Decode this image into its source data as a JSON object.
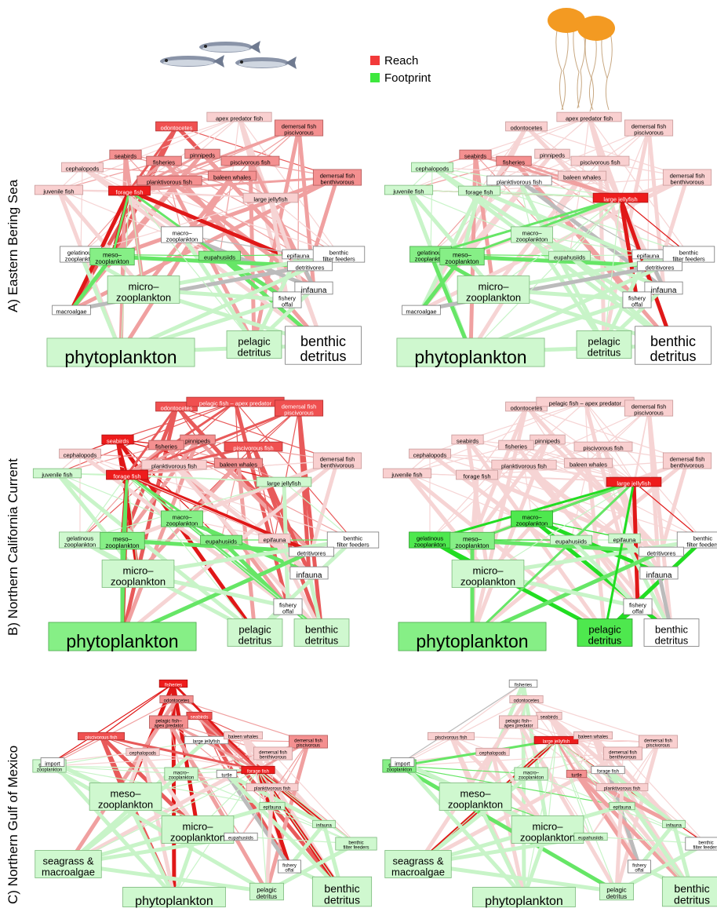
{
  "legend": {
    "reach_label": "Reach",
    "footprint_label": "Footprint",
    "reach_color": "#f23a3a",
    "footprint_color": "#3ee83e"
  },
  "icons": [
    "fish-school-icon",
    "jellyfish-icon"
  ],
  "panels": [
    {
      "row_label": "A) Eastern Bering Sea",
      "focal_left": "forage fish",
      "focal_right": "large jellyfish",
      "nodes": [
        {
          "id": "odo",
          "label": [
            "odontocetes"
          ],
          "L": "r3",
          "R": "r1"
        },
        {
          "id": "apex",
          "label": [
            "apex predator fish"
          ],
          "L": "r1",
          "R": "r1"
        },
        {
          "id": "dfp",
          "label": [
            "demersal fish",
            "piscivorous"
          ],
          "L": "r2",
          "R": "r1"
        },
        {
          "id": "seab",
          "label": [
            "seabirds"
          ],
          "L": "r2",
          "R": "r2"
        },
        {
          "id": "pinn",
          "label": [
            "pinnipeds"
          ],
          "L": "r2",
          "R": "r1"
        },
        {
          "id": "fish",
          "label": [
            "fisheries"
          ],
          "L": "r2",
          "R": "r2"
        },
        {
          "id": "pisc",
          "label": [
            "piscivorous fish"
          ],
          "L": "r2",
          "R": "r1"
        },
        {
          "id": "baleen",
          "label": [
            "baleen whales"
          ],
          "L": "r2",
          "R": "r1"
        },
        {
          "id": "dfb",
          "label": [
            "demersal fish",
            "benthivorous"
          ],
          "L": "r2",
          "R": "r1"
        },
        {
          "id": "ceph",
          "label": [
            "cephalopods"
          ],
          "L": "r1",
          "R": "g1"
        },
        {
          "id": "plank",
          "label": [
            "planktivorous fish"
          ],
          "L": "r2",
          "R": "w"
        },
        {
          "id": "juv",
          "label": [
            "juvenile fish"
          ],
          "L": "r1",
          "R": "g1"
        },
        {
          "id": "forage",
          "label": [
            "forage fish"
          ],
          "L": "r4",
          "R": "g1"
        },
        {
          "id": "ljelly",
          "label": [
            "large jellyfish"
          ],
          "L": "r1",
          "R": "r4"
        },
        {
          "id": "macro",
          "label": [
            "macro–",
            "zooplankton"
          ],
          "L": "w",
          "R": "g1"
        },
        {
          "id": "gel",
          "label": [
            "gelatinous",
            "zooplankton"
          ],
          "L": "w",
          "R": "g2"
        },
        {
          "id": "meso",
          "label": [
            "meso–",
            "zooplankton"
          ],
          "L": "g2",
          "R": "g2"
        },
        {
          "id": "euph",
          "label": [
            "eupahusiids"
          ],
          "L": "g2",
          "R": "g1"
        },
        {
          "id": "epif",
          "label": [
            "epifauna"
          ],
          "L": "w",
          "R": "w"
        },
        {
          "id": "bff",
          "label": [
            "benthic",
            "filter feeders"
          ],
          "L": "w",
          "R": "w"
        },
        {
          "id": "detv",
          "label": [
            "detritivores"
          ],
          "L": "w",
          "R": "w"
        },
        {
          "id": "micro",
          "label": [
            "micro–",
            "zooplankton"
          ],
          "L": "g1",
          "R": "g1"
        },
        {
          "id": "infa",
          "label": [
            "infauna"
          ],
          "L": "w",
          "R": "w"
        },
        {
          "id": "offal",
          "label": [
            "fishery",
            "offal"
          ],
          "L": "w",
          "R": "w"
        },
        {
          "id": "malg",
          "label": [
            "macroalgae"
          ],
          "L": "w",
          "R": "w"
        },
        {
          "id": "phyto",
          "label": [
            "phytoplankton"
          ],
          "L": "g1",
          "R": "g1"
        },
        {
          "id": "pdet",
          "label": [
            "pelagic",
            "detritus"
          ],
          "L": "g1",
          "R": "g1"
        },
        {
          "id": "bdet",
          "label": [
            "benthic",
            "detritus"
          ],
          "L": "w",
          "R": "w"
        }
      ]
    },
    {
      "row_label": "B) Northern California Current",
      "focal_left": "forage fish",
      "focal_right": "large jellyfish",
      "nodes": [
        {
          "id": "odo",
          "label": [
            "odontocetes"
          ],
          "L": "r3",
          "R": "r1"
        },
        {
          "id": "pfap",
          "label": [
            "pelagic fish – apex predator"
          ],
          "L": "r3",
          "R": "r1"
        },
        {
          "id": "dfp",
          "label": [
            "demersal fish",
            "piscivorous"
          ],
          "L": "r3",
          "R": "r1"
        },
        {
          "id": "seab",
          "label": [
            "seabirds"
          ],
          "L": "r4",
          "R": "r1"
        },
        {
          "id": "pinn",
          "label": [
            "pinnipeds"
          ],
          "L": "r2",
          "R": "r1"
        },
        {
          "id": "fish",
          "label": [
            "fisheries"
          ],
          "L": "r2",
          "R": "r1"
        },
        {
          "id": "pisc",
          "label": [
            "piscivorous fish"
          ],
          "L": "r3",
          "R": "r1"
        },
        {
          "id": "baleen",
          "label": [
            "baleen whales"
          ],
          "L": "r2",
          "R": "r1"
        },
        {
          "id": "dfb",
          "label": [
            "demersal fish",
            "benthivorous"
          ],
          "L": "r1",
          "R": "r1"
        },
        {
          "id": "ceph",
          "label": [
            "cephalopods"
          ],
          "L": "r1",
          "R": "r1"
        },
        {
          "id": "plank",
          "label": [
            "planktivorous fish"
          ],
          "L": "r1",
          "R": "r1"
        },
        {
          "id": "juv",
          "label": [
            "juvenile fish"
          ],
          "L": "g1",
          "R": "r1"
        },
        {
          "id": "forage",
          "label": [
            "forage fish"
          ],
          "L": "r4",
          "R": "r1"
        },
        {
          "id": "ljelly",
          "label": [
            "large jellyfish"
          ],
          "L": "g1",
          "R": "r4"
        },
        {
          "id": "macro",
          "label": [
            "macro–",
            "zooplankton"
          ],
          "L": "g2",
          "R": "g3"
        },
        {
          "id": "gel",
          "label": [
            "gelatinous",
            "zooplankton"
          ],
          "L": "g1",
          "R": "g3"
        },
        {
          "id": "meso",
          "label": [
            "meso–",
            "zooplankton"
          ],
          "L": "g2",
          "R": "g2"
        },
        {
          "id": "euph",
          "label": [
            "eupahusiids"
          ],
          "L": "g2",
          "R": "g1"
        },
        {
          "id": "epif",
          "label": [
            "epifauna"
          ],
          "L": "r1",
          "R": "g1"
        },
        {
          "id": "bff",
          "label": [
            "benthic",
            "filter feeders"
          ],
          "L": "w",
          "R": "w"
        },
        {
          "id": "detv",
          "label": [
            "detritivores"
          ],
          "L": "w",
          "R": "w"
        },
        {
          "id": "micro",
          "label": [
            "micro–",
            "zooplankton"
          ],
          "L": "g1",
          "R": "g1"
        },
        {
          "id": "infa",
          "label": [
            "infauna"
          ],
          "L": "w",
          "R": "w"
        },
        {
          "id": "offal",
          "label": [
            "fishery",
            "offal"
          ],
          "L": "w",
          "R": "w"
        },
        {
          "id": "phyto",
          "label": [
            "phytoplankton"
          ],
          "L": "g2",
          "R": "g2"
        },
        {
          "id": "pdet",
          "label": [
            "pelagic",
            "detritus"
          ],
          "L": "g1",
          "R": "g3"
        },
        {
          "id": "bdet",
          "label": [
            "benthic",
            "detritus"
          ],
          "L": "g1",
          "R": "w"
        }
      ]
    },
    {
      "row_label": "C) Northern Gulf of Mexico",
      "focal_left": "forage fish",
      "focal_right": "large jellyfish",
      "nodes": [
        {
          "id": "fish",
          "label": [
            "fisheries"
          ],
          "L": "r4",
          "R": "w"
        },
        {
          "id": "odo",
          "label": [
            "odontocetes"
          ],
          "L": "r2",
          "R": "r1"
        },
        {
          "id": "seab",
          "label": [
            "seabirds"
          ],
          "L": "r3",
          "R": "r1"
        },
        {
          "id": "pfap",
          "label": [
            "pelagic fish–",
            "apex predator"
          ],
          "L": "r2",
          "R": "r1"
        },
        {
          "id": "pisc",
          "label": [
            "piscivorous fish"
          ],
          "L": "r3",
          "R": "r1"
        },
        {
          "id": "ljelly",
          "label": [
            "large jellyfish"
          ],
          "L": "w",
          "R": "r4"
        },
        {
          "id": "baleen",
          "label": [
            "baleen whales"
          ],
          "L": "r1",
          "R": "r1"
        },
        {
          "id": "dfp",
          "label": [
            "demersal fish",
            "piscivorous"
          ],
          "L": "r2",
          "R": "r1"
        },
        {
          "id": "ceph",
          "label": [
            "cephalopods"
          ],
          "L": "r1",
          "R": "r1"
        },
        {
          "id": "dfb",
          "label": [
            "demersal fish",
            "benthivorous"
          ],
          "L": "r1",
          "R": "r1"
        },
        {
          "id": "forage",
          "label": [
            "forage fish"
          ],
          "L": "r4",
          "R": "w"
        },
        {
          "id": "gel",
          "label": [
            "gelatinous",
            "zooplankton"
          ],
          "L": "g1",
          "R": "g2"
        },
        {
          "id": "import",
          "label": [
            "import"
          ],
          "L": "w",
          "R": "w"
        },
        {
          "id": "macro",
          "label": [
            "macro–",
            "zooplankton"
          ],
          "L": "g1",
          "R": "g1"
        },
        {
          "id": "turtle",
          "label": [
            "turtle"
          ],
          "L": "w",
          "R": "r2"
        },
        {
          "id": "plank",
          "label": [
            "planktivorous fish"
          ],
          "L": "r1",
          "R": "r1"
        },
        {
          "id": "meso",
          "label": [
            "meso–",
            "zooplankton"
          ],
          "L": "g1",
          "R": "g1"
        },
        {
          "id": "epif",
          "label": [
            "epifauna"
          ],
          "L": "g1",
          "R": "g1"
        },
        {
          "id": "infa",
          "label": [
            "infauna"
          ],
          "L": "g1",
          "R": "g1"
        },
        {
          "id": "bff",
          "label": [
            "benthic",
            "filter feeders"
          ],
          "L": "g1",
          "R": "w"
        },
        {
          "id": "micro",
          "label": [
            "micro–",
            "zooplankton"
          ],
          "L": "g1",
          "R": "g1"
        },
        {
          "id": "euph",
          "label": [
            "eupahusiids"
          ],
          "L": "w",
          "R": "g1"
        },
        {
          "id": "offal",
          "label": [
            "fishery",
            "offal"
          ],
          "L": "w",
          "R": "w"
        },
        {
          "id": "sgma",
          "label": [
            "seagrass &",
            "macroalgae"
          ],
          "L": "g1",
          "R": "g1"
        },
        {
          "id": "phyto",
          "label": [
            "phytoplankton"
          ],
          "L": "g1",
          "R": "g1"
        },
        {
          "id": "pdet",
          "label": [
            "pelagic",
            "detritus"
          ],
          "L": "g1",
          "R": "g1"
        },
        {
          "id": "bdet",
          "label": [
            "benthic",
            "detritus"
          ],
          "L": "g1",
          "R": "g1"
        }
      ]
    }
  ]
}
